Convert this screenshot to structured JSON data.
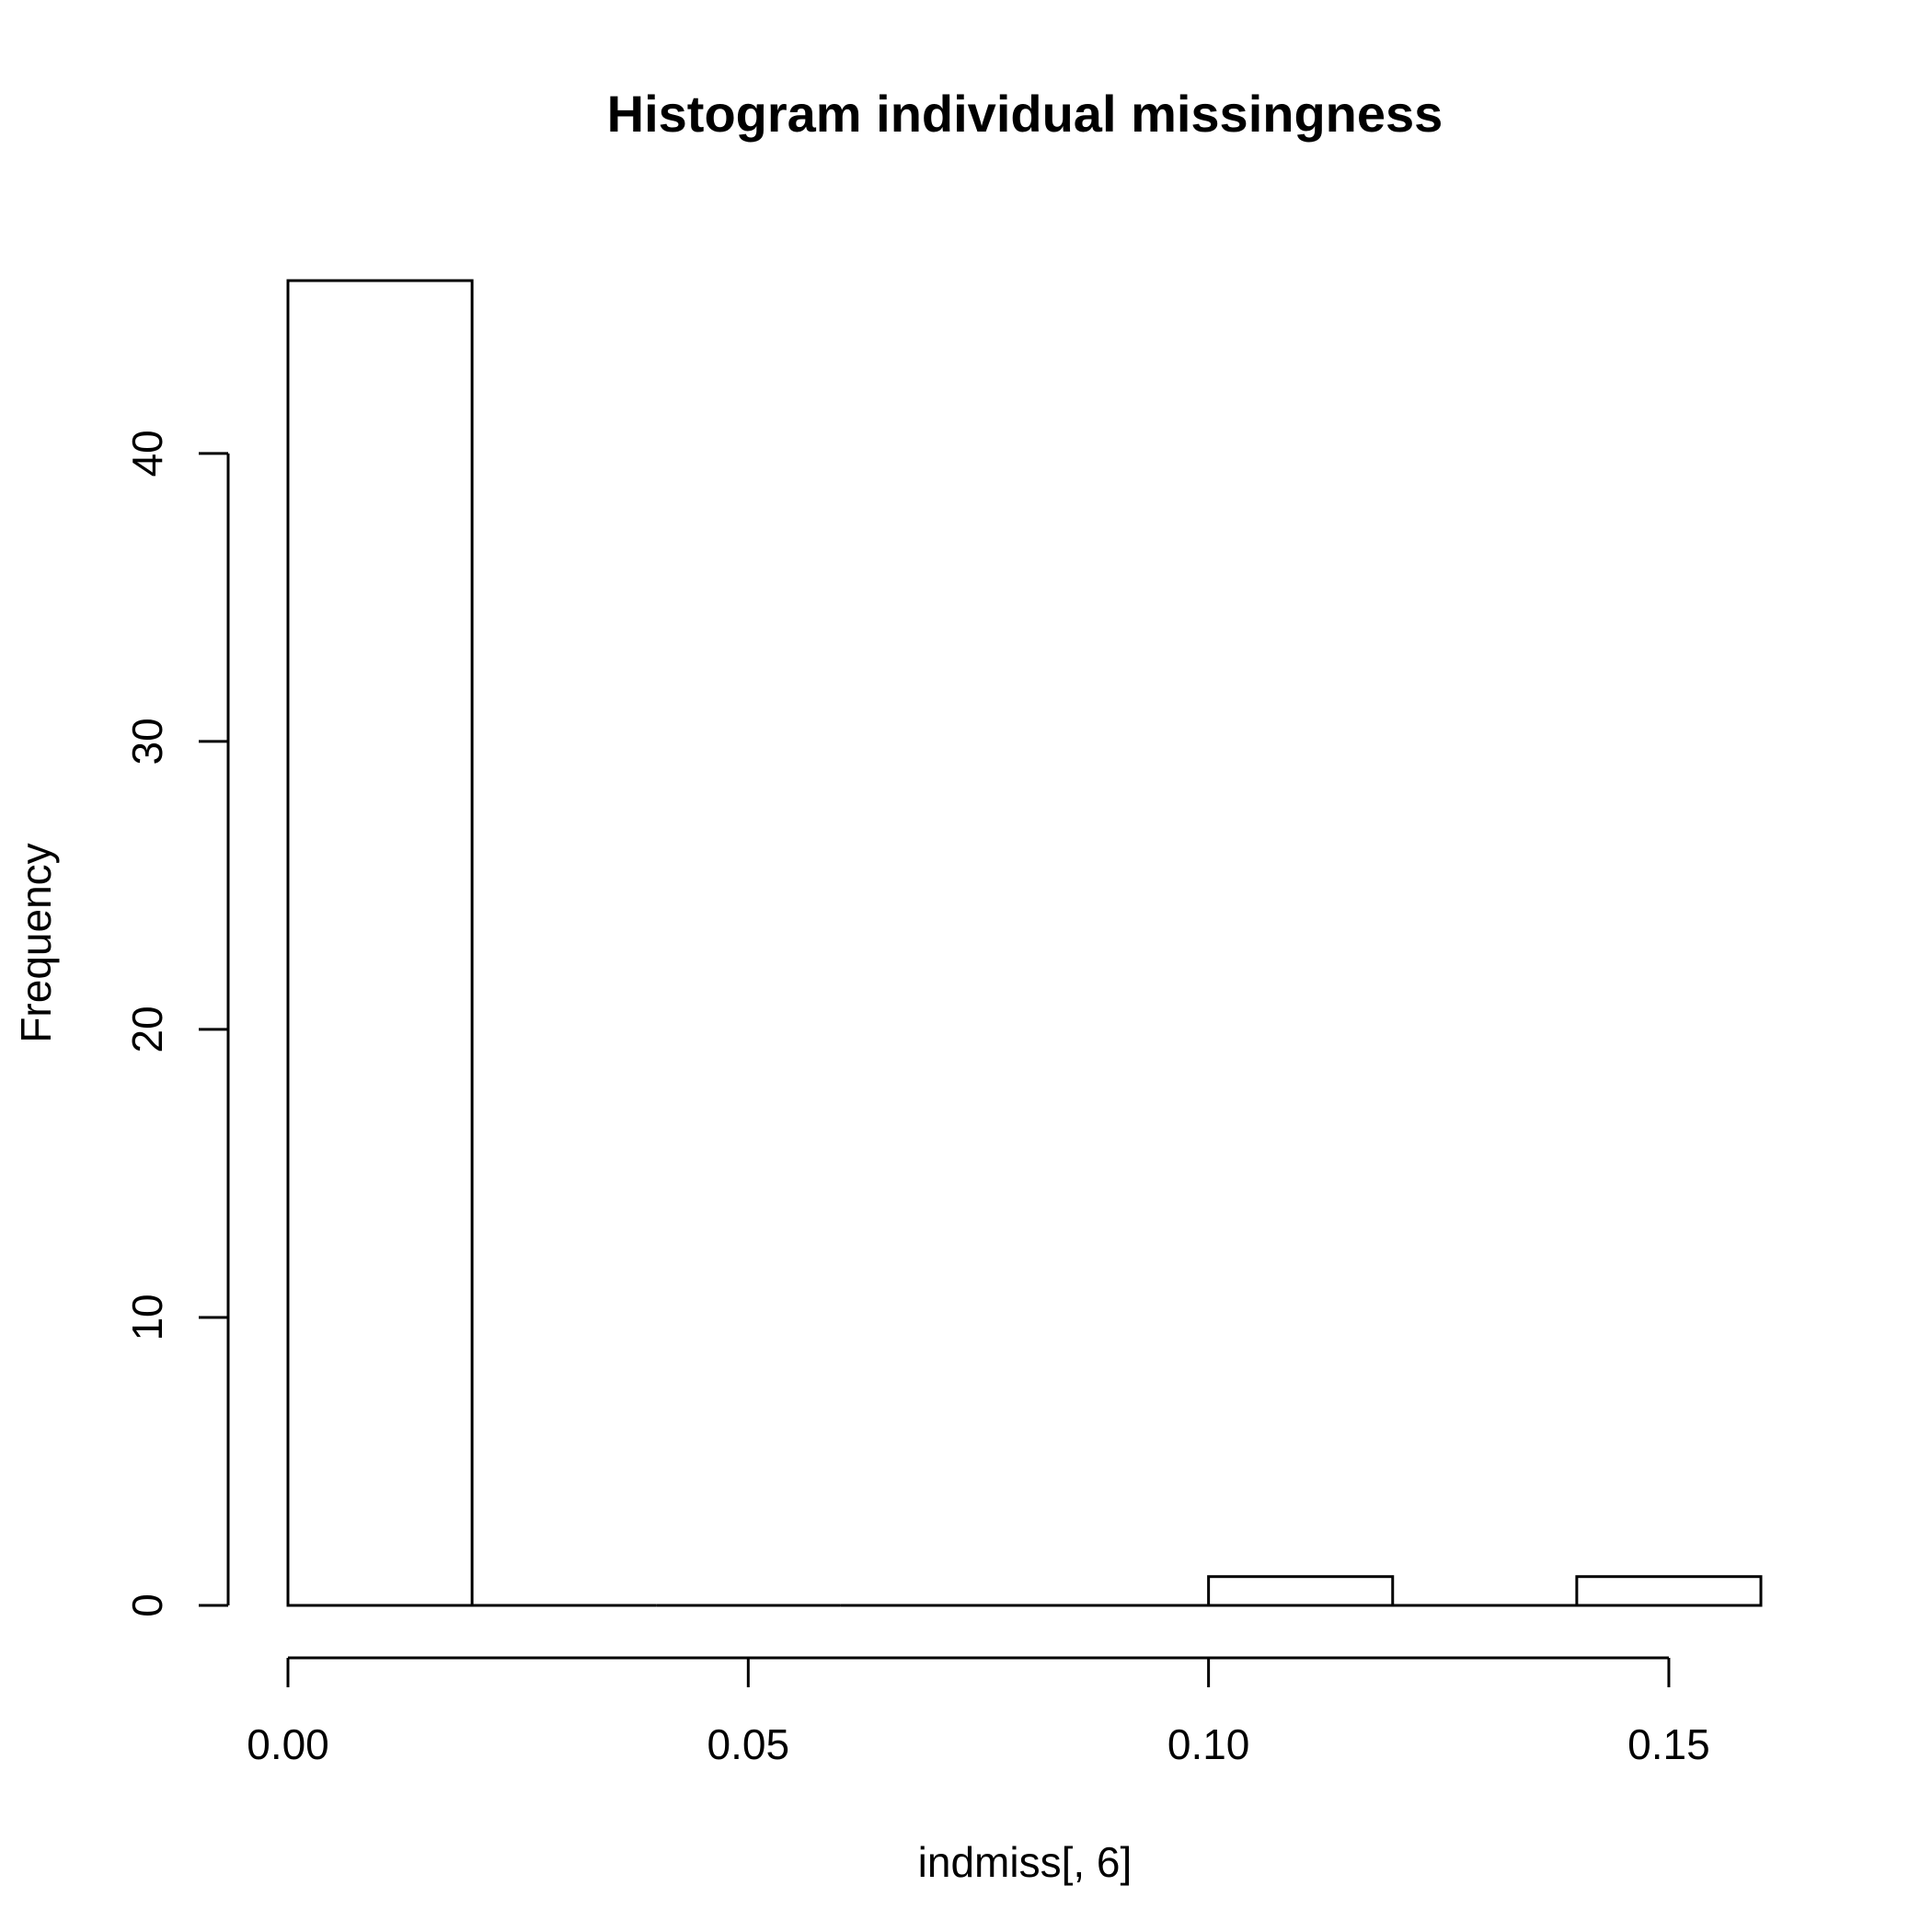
{
  "chart_data": {
    "type": "bar",
    "title": "Histogram individual missingness",
    "xlabel": "indmiss[, 6]",
    "ylabel": "Frequency",
    "bins": [
      {
        "x0": 0.0,
        "x1": 0.02,
        "count": 46
      },
      {
        "x0": 0.02,
        "x1": 0.04,
        "count": 0
      },
      {
        "x0": 0.04,
        "x1": 0.06,
        "count": 0
      },
      {
        "x0": 0.06,
        "x1": 0.08,
        "count": 0
      },
      {
        "x0": 0.08,
        "x1": 0.1,
        "count": 0
      },
      {
        "x0": 0.1,
        "x1": 0.12,
        "count": 1
      },
      {
        "x0": 0.12,
        "x1": 0.14,
        "count": 0
      },
      {
        "x0": 0.14,
        "x1": 0.16,
        "count": 1
      }
    ],
    "x_ticks": [
      0.0,
      0.05,
      0.1,
      0.15
    ],
    "x_tick_labels": [
      "0.00",
      "0.05",
      "0.10",
      "0.15"
    ],
    "y_ticks": [
      0,
      10,
      20,
      30,
      40
    ],
    "y_tick_labels": [
      "0",
      "10",
      "20",
      "30",
      "40"
    ],
    "xlim": [
      0.0,
      0.16
    ],
    "ylim": [
      0,
      46
    ],
    "grid": false,
    "bar_fill": "#ffffff",
    "bar_stroke": "#000000"
  }
}
